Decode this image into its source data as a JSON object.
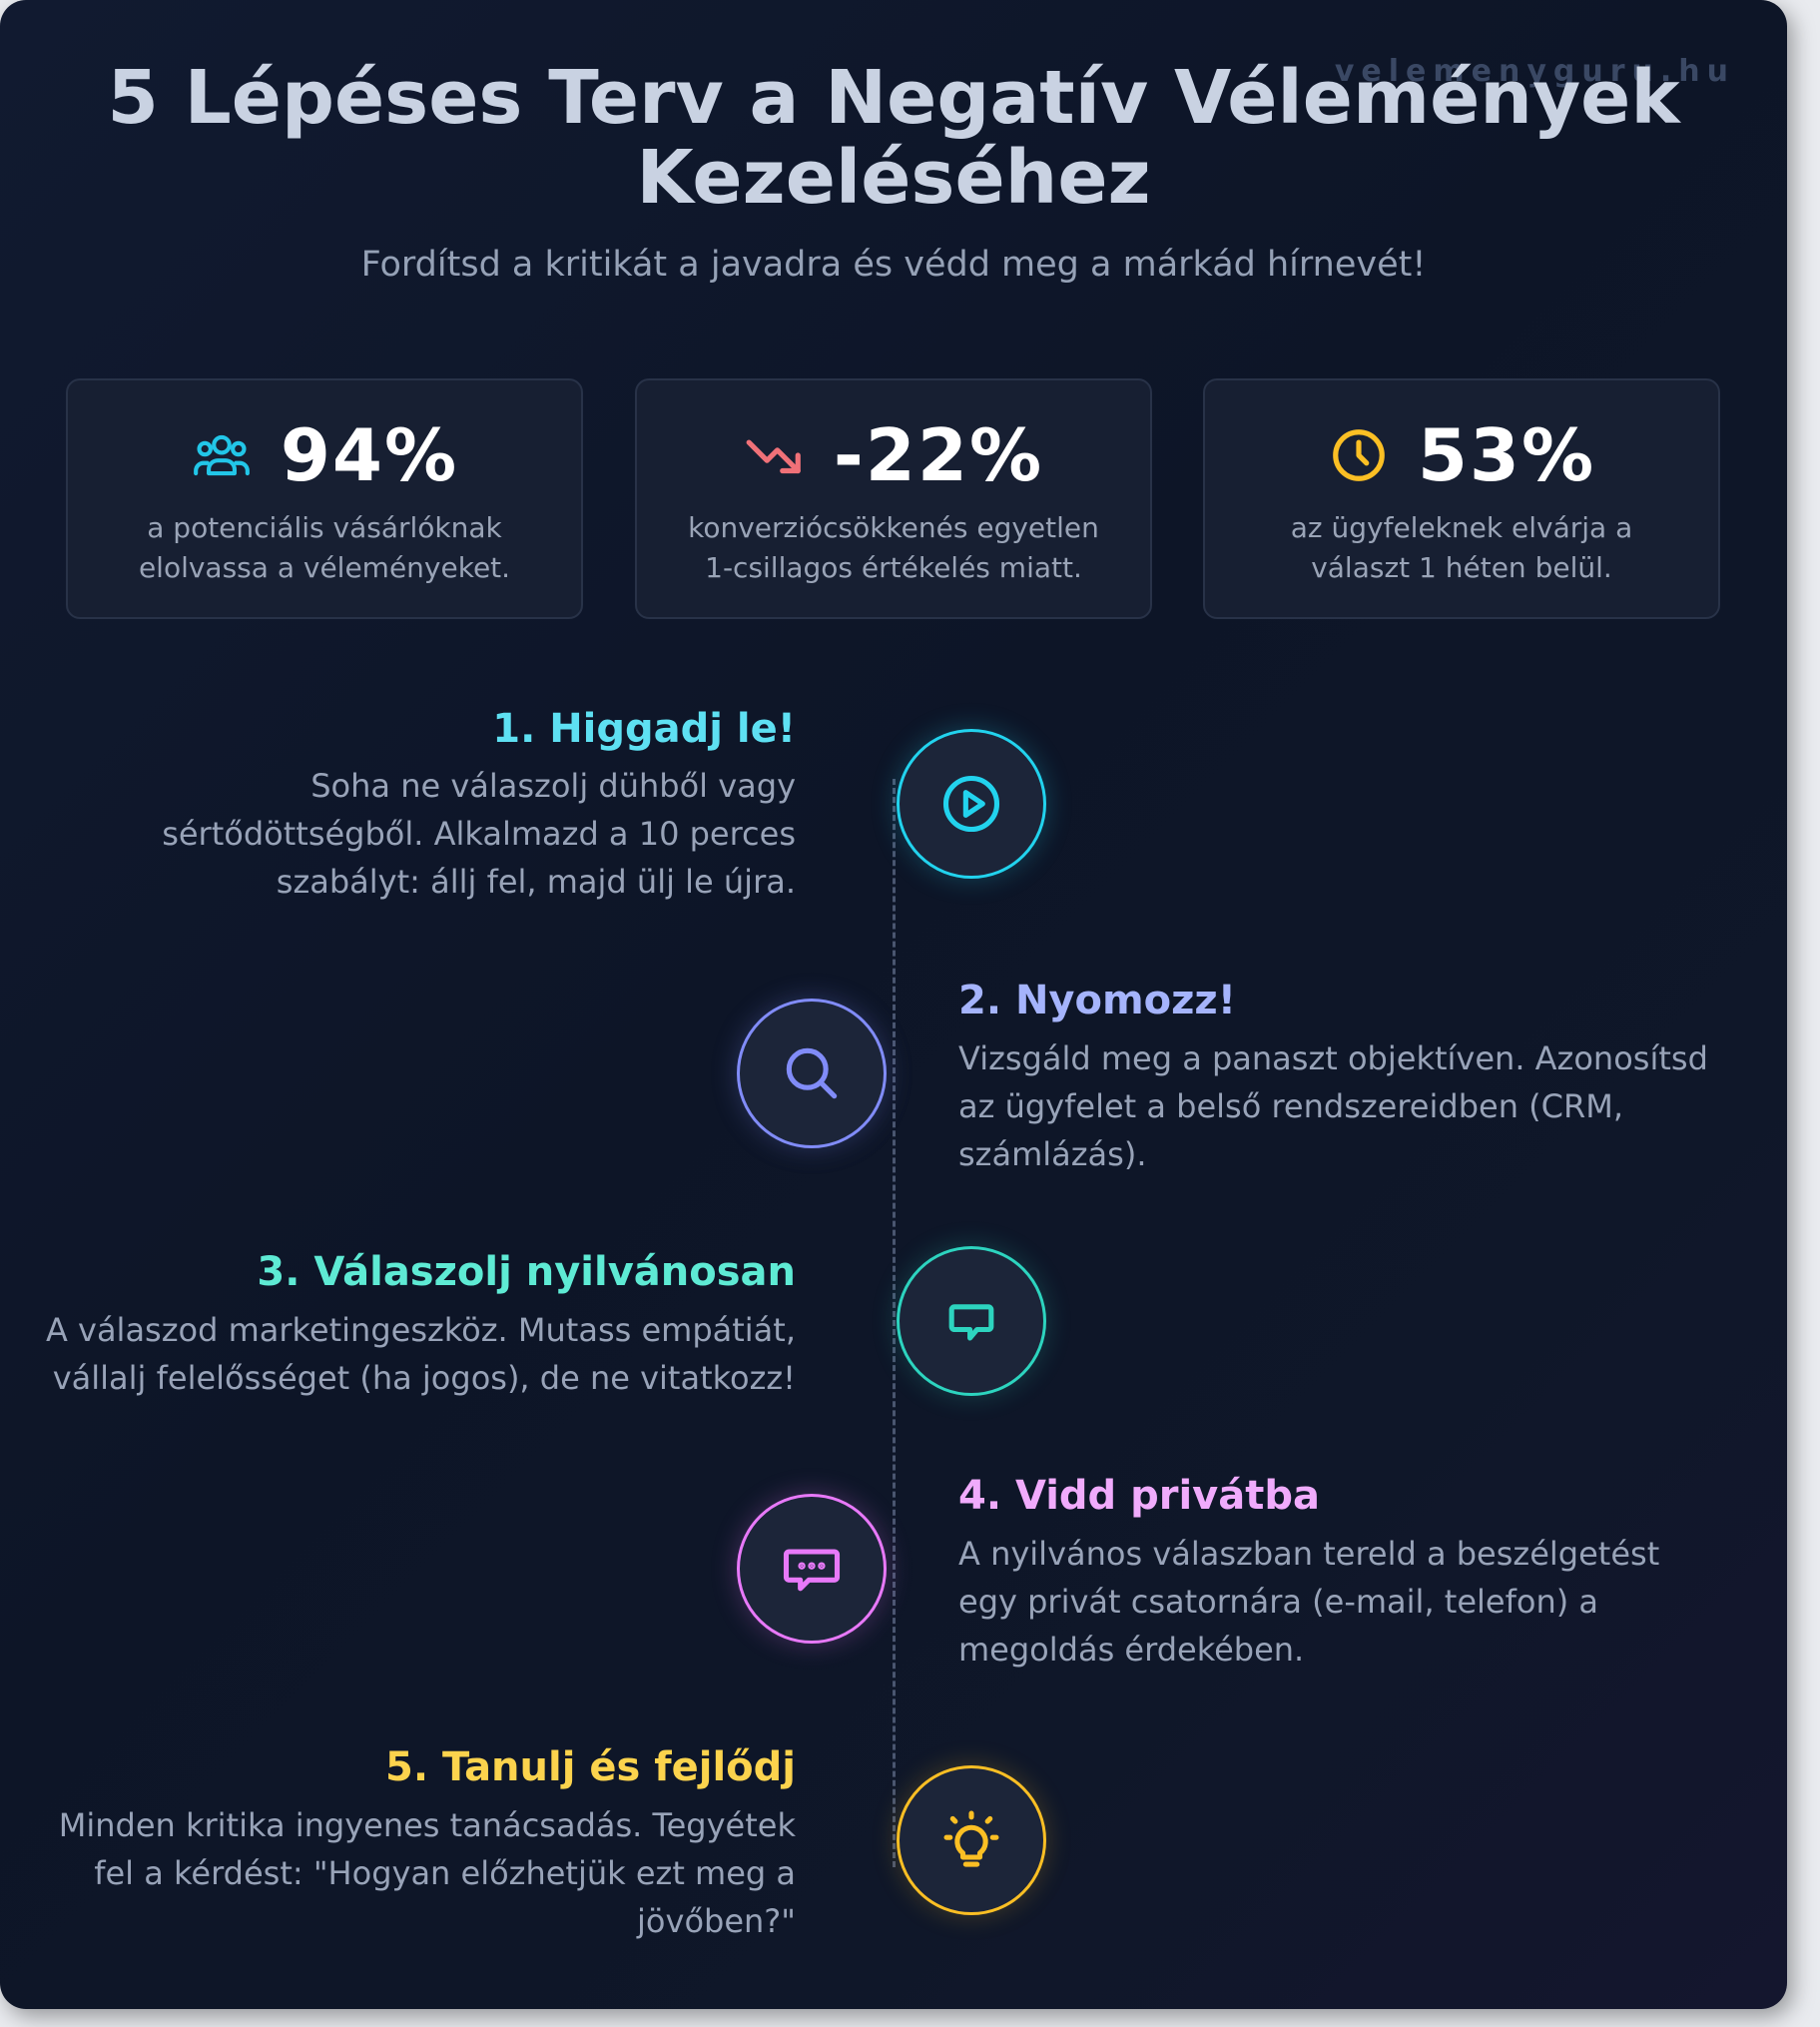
{
  "brand": "velemenyguru.hu",
  "title": "5 Lépéses Terv a Negatív Vélemények Kezeléséhez",
  "subtitle": "Fordítsd a kritikát a javadra és védd meg a márkád hírnevét!",
  "stats": [
    {
      "icon": "users-icon",
      "value": "94%",
      "description": "a potenciális vásárlóknak elolvassa a véleményeket.",
      "color": "#22c6e8"
    },
    {
      "icon": "trending-down-icon",
      "value": "-22%",
      "description": "konverziócsökkenés egyetlen 1-csillagos értékelés miatt.",
      "color": "#f07178"
    },
    {
      "icon": "clock-icon",
      "value": "53%",
      "description": "az ügyfeleknek elvárja a választ 1 héten belül.",
      "color": "#fbbf24"
    }
  ],
  "steps": [
    {
      "title": "1. Higgadj le!",
      "description": "Soha ne válaszolj dühből vagy sértődöttségből. Alkalmazd a 10 perces szabályt: állj fel, majd ülj le újra.",
      "icon": "play-icon",
      "color": "#22d3ee"
    },
    {
      "title": "2. Nyomozz!",
      "description": "Vizsgáld meg a panaszt objektíven. Azonosítsd az ügyfelet a belső rendszereidben (CRM, számlázás).",
      "icon": "search-icon",
      "color": "#818cf8"
    },
    {
      "title": "3. Válaszolj nyilvánosan",
      "description": "A válaszod marketingeszköz. Mutass empátiát, vállalj felelősséget (ha jogos), de ne vitatkozz!",
      "icon": "message-square-icon",
      "color": "#2dd4bf"
    },
    {
      "title": "4. Vidd privátba",
      "description": "A nyilvános válaszban tereld a beszélgetést egy privát csatornára (e-mail, telefon) a megoldás érdekében.",
      "icon": "message-dots-icon",
      "color": "#e879f9"
    },
    {
      "title": "5. Tanulj és fejlődj",
      "description": "Minden kritika ingyenes tanácsadás. Tegyétek fel a kérdést: \"Hogyan előzhetjük ezt meg a jövőben?\"",
      "icon": "lightbulb-icon",
      "color": "#fbbf24"
    }
  ]
}
